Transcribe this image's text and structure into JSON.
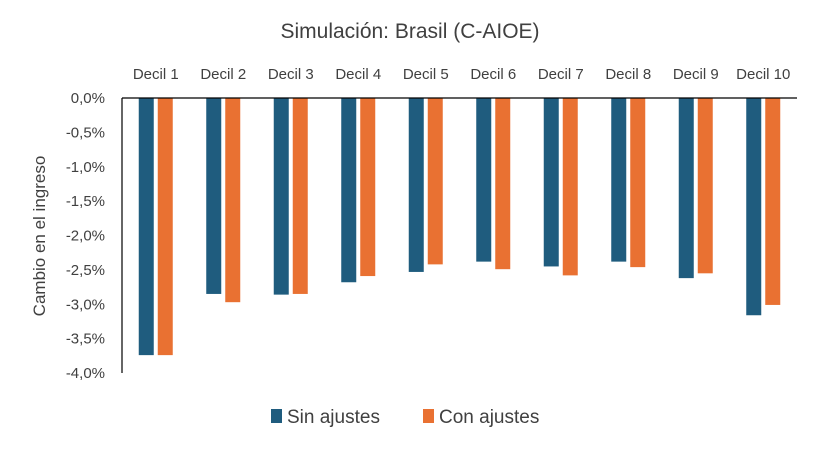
{
  "chart_data": {
    "type": "bar",
    "title": "Simulación: Brasil (C-AIOE)",
    "xlabel": "",
    "ylabel": "Cambio en el ingreso",
    "categories": [
      "Decil 1",
      "Decil 2",
      "Decil 3",
      "Decil 4",
      "Decil 5",
      "Decil 6",
      "Decil 7",
      "Decil 8",
      "Decil 9",
      "Decil 10"
    ],
    "series": [
      {
        "name": "Sin ajustes",
        "color": "#1F5C7E",
        "values": [
          -3.74,
          -2.85,
          -2.86,
          -2.68,
          -2.53,
          -2.38,
          -2.45,
          -2.38,
          -2.62,
          -3.16
        ]
      },
      {
        "name": "Con ajustes",
        "color": "#E97132",
        "values": [
          -3.74,
          -2.97,
          -2.85,
          -2.59,
          -2.42,
          -2.49,
          -2.58,
          -2.46,
          -2.55,
          -3.01
        ]
      }
    ],
    "yticks": [
      "0,0%",
      "-0,5%",
      "-1,0%",
      "-1,5%",
      "-2,0%",
      "-2,5%",
      "-3,0%",
      "-3,5%",
      "-4,0%"
    ],
    "ylim": [
      -4.0,
      0.0
    ],
    "grid": false,
    "legend": "bottom-center"
  }
}
